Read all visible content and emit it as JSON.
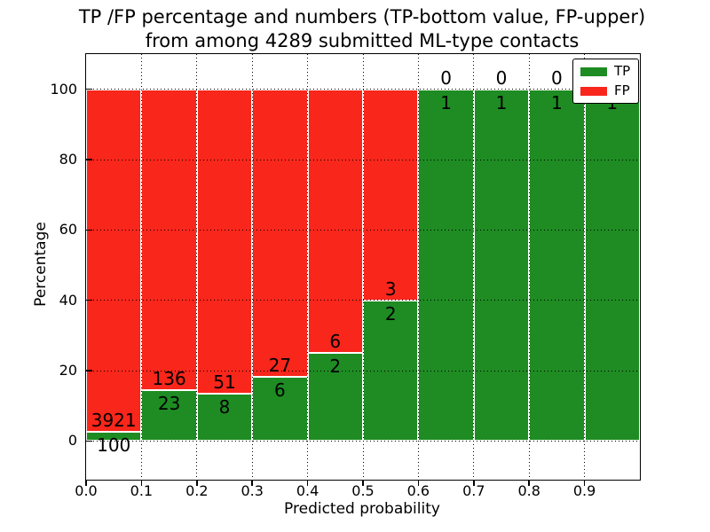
{
  "title": {
    "line1": "TP /FP percentage and numbers (TP-bottom value, FP-upper)",
    "line2": "from among 4289 submitted ML-type contacts"
  },
  "chart_data": {
    "type": "bar",
    "variant": "stacked-percentage-histogram",
    "title": "TP /FP percentage and numbers (TP-bottom value, FP-upper)\nfrom among 4289 submitted ML-type contacts",
    "xlabel": "Predicted probability",
    "ylabel": "Percentage",
    "total_submitted_contacts": 4289,
    "bin_start": [
      0.0,
      0.1,
      0.2,
      0.3,
      0.4,
      0.5,
      0.6,
      0.7,
      0.8,
      0.9
    ],
    "bin_width": 0.1,
    "series": [
      {
        "name": "TP",
        "color": "#1e8c23",
        "counts": [
          100,
          23,
          8,
          6,
          2,
          2,
          1,
          1,
          1,
          1
        ]
      },
      {
        "name": "FP",
        "color": "#f9261b",
        "counts": [
          3921,
          136,
          51,
          27,
          6,
          3,
          0,
          0,
          0,
          0
        ]
      }
    ],
    "tp_percent": [
      2.5,
      14.5,
      13.6,
      18.2,
      25.0,
      40.0,
      100.0,
      100.0,
      100.0,
      100.0
    ],
    "annotation_note": "FP count above TP/FP boundary, TP count below boundary",
    "xticks": [
      "0.0",
      "0.1",
      "0.2",
      "0.3",
      "0.4",
      "0.5",
      "0.6",
      "0.7",
      "0.8",
      "0.9"
    ],
    "yticks": [
      "0",
      "20",
      "40",
      "60",
      "80",
      "100"
    ],
    "xlim": [
      0.0,
      1.0
    ],
    "ylim": [
      -11,
      110
    ],
    "grid": {
      "style": "dotted",
      "color": "#000000"
    },
    "legend": {
      "position": "upper-right",
      "entries": [
        {
          "label": "TP",
          "color": "#1e8c23"
        },
        {
          "label": "FP",
          "color": "#f9261b"
        }
      ]
    }
  }
}
